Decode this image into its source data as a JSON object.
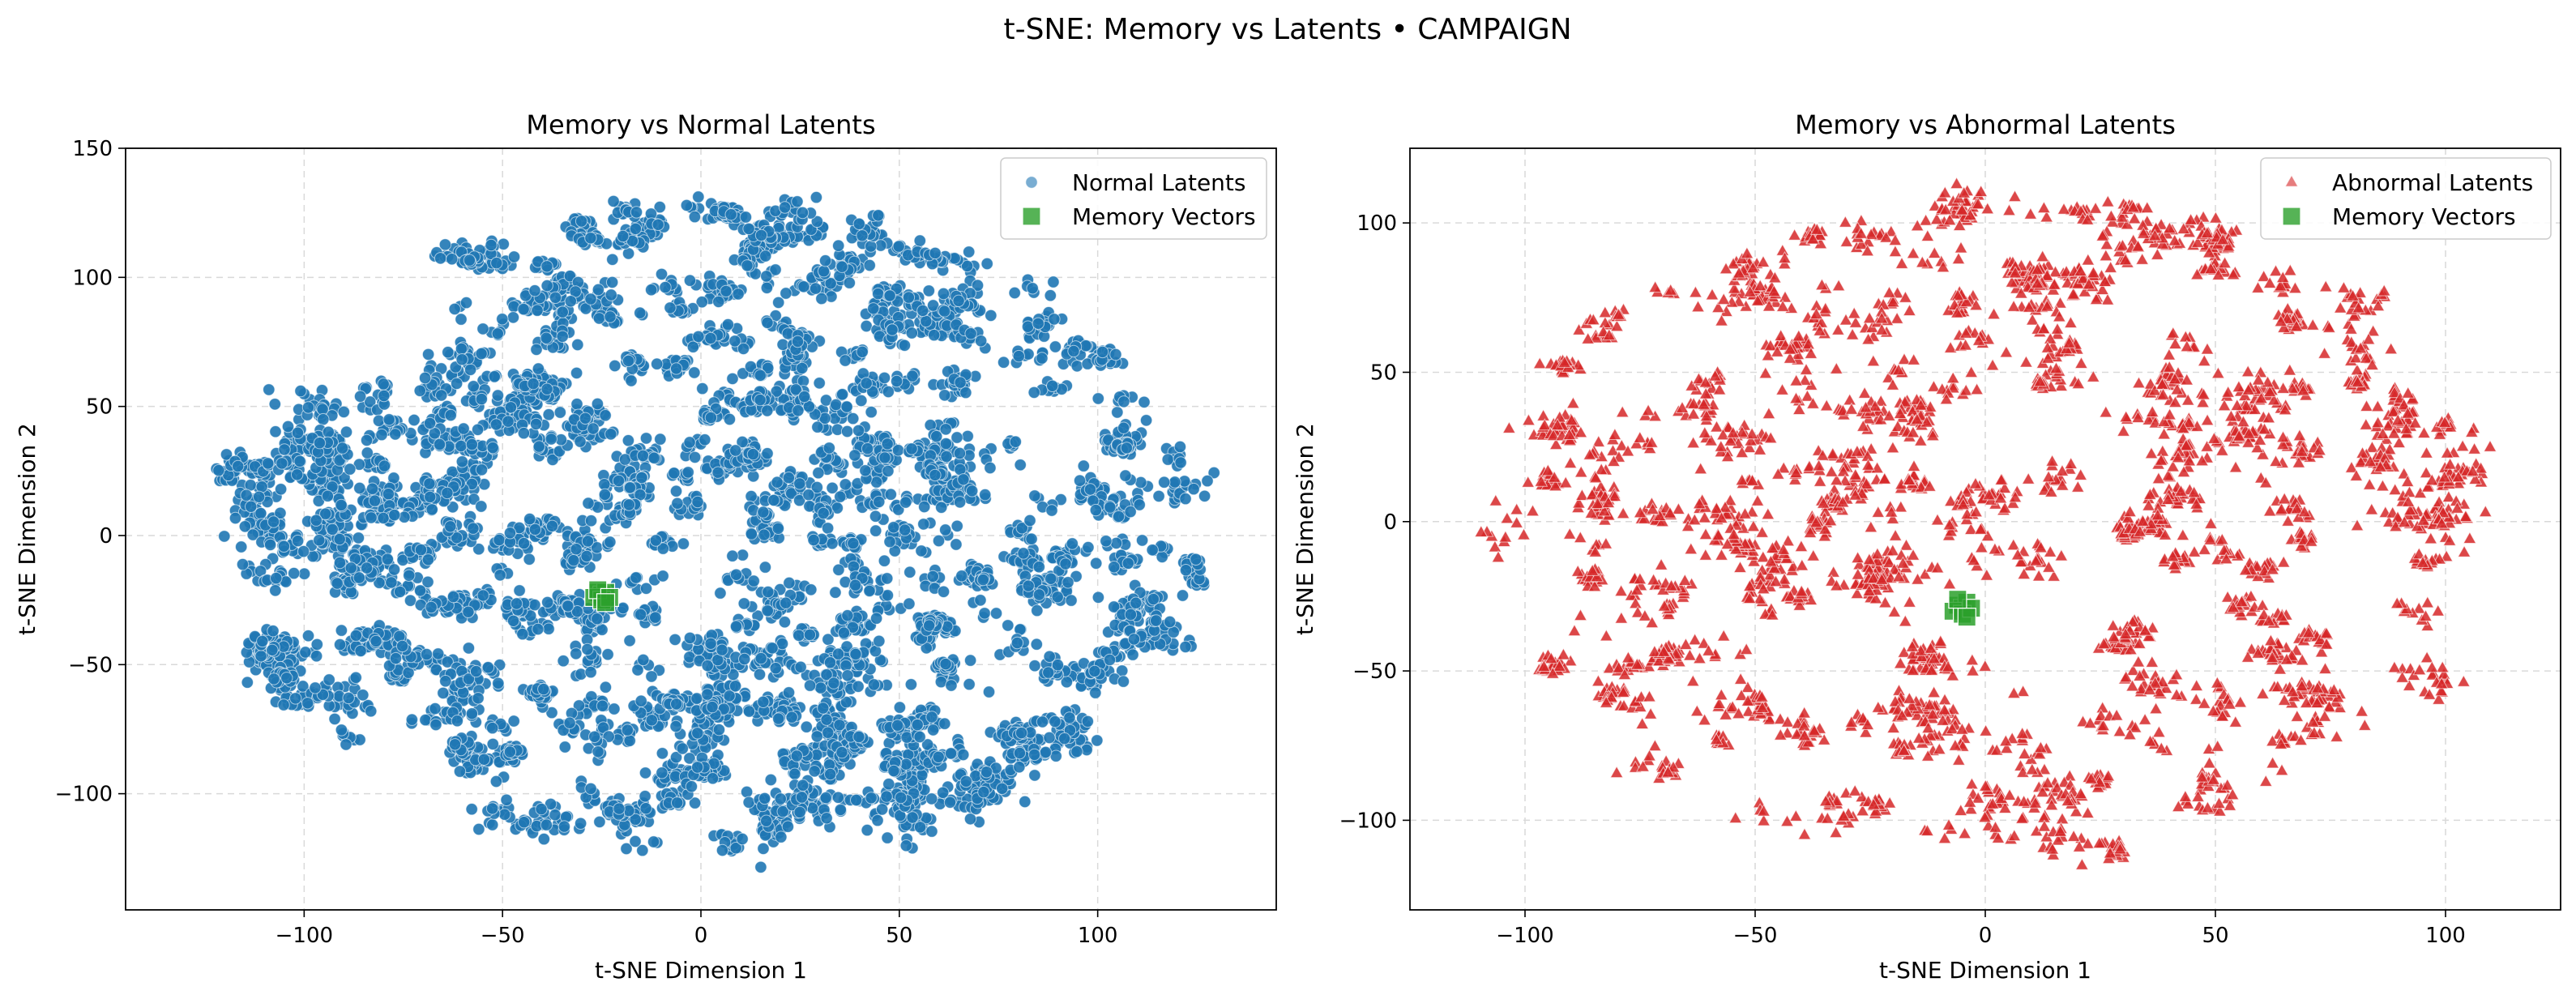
{
  "figure_title": "t-SNE: Memory vs Latents • CAMPAIGN",
  "colors": {
    "normal": "#1f77b4",
    "abnormal": "#d62728",
    "memory": "#2ca02c",
    "grid": "#d9d9d9"
  },
  "chart_data": [
    {
      "type": "scatter",
      "title": "Memory vs Normal Latents",
      "xlabel": "t-SNE Dimension 1",
      "ylabel": "t-SNE Dimension 2",
      "xlim": [
        -145,
        145
      ],
      "ylim": [
        -145,
        150
      ],
      "xticks": [
        -100,
        -50,
        0,
        50,
        100
      ],
      "yticks": [
        -100,
        -50,
        0,
        50,
        100,
        150
      ],
      "xtick_labels": [
        "−100",
        "−50",
        "0",
        "50",
        "100"
      ],
      "ytick_labels": [
        "−100",
        "−50",
        "0",
        "50",
        "100",
        "150"
      ],
      "grid": true,
      "legend_position": "top-right",
      "series": [
        {
          "name": "Normal Latents",
          "marker": "circle",
          "color": "#1f77b4",
          "point_cloud": {
            "type": "ellipse",
            "center": [
              3,
              2
            ],
            "x_radius": 128,
            "y_radius": 132,
            "approx_points": 6000
          }
        },
        {
          "name": "Memory Vectors",
          "marker": "square",
          "color": "#2ca02c",
          "points": [
            [
              -26,
              -22
            ],
            [
              -25,
              -23
            ],
            [
              -24,
              -22
            ],
            [
              -27,
              -24
            ],
            [
              -25,
              -25
            ],
            [
              -26,
              -21
            ],
            [
              -23,
              -24
            ],
            [
              -24,
              -26
            ]
          ]
        }
      ]
    },
    {
      "type": "scatter",
      "title": "Memory vs Abnormal Latents",
      "xlabel": "t-SNE Dimension 1",
      "ylabel": "t-SNE Dimension 2",
      "xlim": [
        -125,
        125
      ],
      "ylim": [
        -130,
        125
      ],
      "xticks": [
        -100,
        -50,
        0,
        50,
        100
      ],
      "yticks": [
        -100,
        -50,
        0,
        50,
        100
      ],
      "xtick_labels": [
        "−100",
        "−50",
        "0",
        "50",
        "100"
      ],
      "ytick_labels": [
        "−100",
        "−50",
        "0",
        "50",
        "100"
      ],
      "grid": true,
      "legend_position": "top-right",
      "series": [
        {
          "name": "Abnormal Latents",
          "marker": "triangle",
          "color": "#d62728",
          "point_cloud": {
            "type": "ellipse",
            "center": [
              2,
              -3
            ],
            "x_radius": 113,
            "y_radius": 115,
            "approx_points": 3000
          }
        },
        {
          "name": "Memory Vectors",
          "marker": "square",
          "color": "#2ca02c",
          "points": [
            [
              -6,
              -28
            ],
            [
              -5,
              -29
            ],
            [
              -4,
              -27
            ],
            [
              -7,
              -30
            ],
            [
              -5,
              -31
            ],
            [
              -3,
              -29
            ],
            [
              -6,
              -26
            ],
            [
              -4,
              -32
            ]
          ]
        }
      ]
    }
  ]
}
